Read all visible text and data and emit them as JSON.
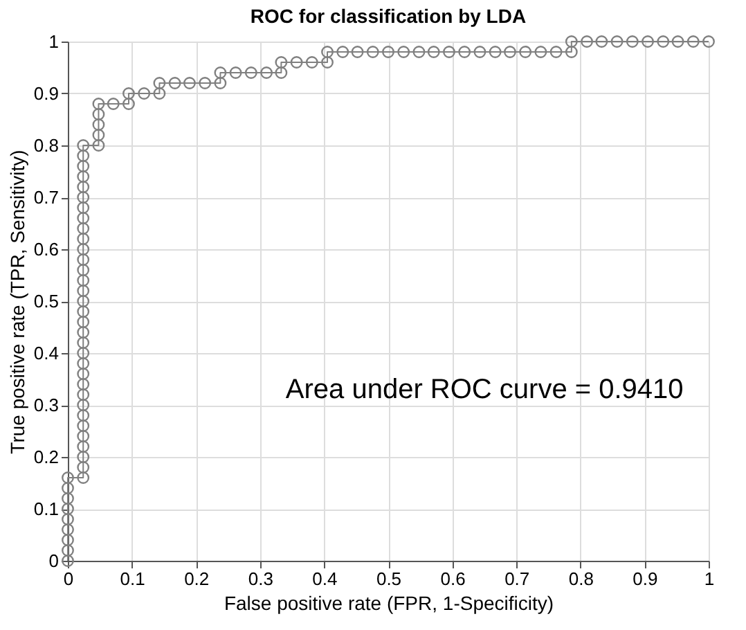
{
  "chart_data": {
    "type": "line",
    "title": "ROC for classification by LDA",
    "xlabel": "False positive rate (FPR, 1-Specificity)",
    "ylabel": "True positive rate (TPR, Sensitivity)",
    "x": [
      0,
      0,
      0,
      0,
      0,
      0,
      0,
      0,
      0,
      0.024,
      0.024,
      0.024,
      0.024,
      0.024,
      0.024,
      0.024,
      0.024,
      0.024,
      0.024,
      0.024,
      0.024,
      0.024,
      0.024,
      0.024,
      0.024,
      0.024,
      0.024,
      0.024,
      0.024,
      0.024,
      0.024,
      0.024,
      0.024,
      0.024,
      0.024,
      0.024,
      0.024,
      0.024,
      0.024,
      0.024,
      0.024,
      0.024,
      0.048,
      0.048,
      0.048,
      0.048,
      0.048,
      0.071,
      0.095,
      0.095,
      0.119,
      0.143,
      0.143,
      0.167,
      0.19,
      0.214,
      0.238,
      0.238,
      0.262,
      0.286,
      0.31,
      0.333,
      0.333,
      0.357,
      0.381,
      0.405,
      0.405,
      0.429,
      0.452,
      0.476,
      0.5,
      0.524,
      0.548,
      0.571,
      0.595,
      0.619,
      0.643,
      0.667,
      0.69,
      0.714,
      0.738,
      0.762,
      0.786,
      0.786,
      0.81,
      0.833,
      0.857,
      0.881,
      0.905,
      0.929,
      0.952,
      0.976,
      1
    ],
    "series": [
      {
        "color": "#808080",
        "values": [
          0,
          0.02,
          0.04,
          0.06,
          0.08,
          0.1,
          0.12,
          0.14,
          0.16,
          0.16,
          0.18,
          0.2,
          0.22,
          0.24,
          0.26,
          0.28,
          0.3,
          0.32,
          0.34,
          0.36,
          0.38,
          0.4,
          0.42,
          0.44,
          0.46,
          0.48,
          0.5,
          0.52,
          0.54,
          0.56,
          0.58,
          0.6,
          0.62,
          0.64,
          0.66,
          0.68,
          0.7,
          0.72,
          0.74,
          0.76,
          0.78,
          0.8,
          0.8,
          0.82,
          0.84,
          0.86,
          0.88,
          0.88,
          0.88,
          0.9,
          0.9,
          0.9,
          0.92,
          0.92,
          0.92,
          0.92,
          0.92,
          0.94,
          0.94,
          0.94,
          0.94,
          0.94,
          0.96,
          0.96,
          0.96,
          0.96,
          0.98,
          0.98,
          0.98,
          0.98,
          0.98,
          0.98,
          0.98,
          0.98,
          0.98,
          0.98,
          0.98,
          0.98,
          0.98,
          0.98,
          0.98,
          0.98,
          0.98,
          1,
          1,
          1,
          1,
          1,
          1,
          1,
          1,
          1,
          1
        ]
      }
    ],
    "xlim": [
      0,
      1
    ],
    "ylim": [
      0,
      1
    ],
    "xticks": [
      0,
      0.1,
      0.2,
      0.3,
      0.4,
      0.5,
      0.6,
      0.7,
      0.8,
      0.9,
      1
    ],
    "yticks": [
      0,
      0.1,
      0.2,
      0.3,
      0.4,
      0.5,
      0.6,
      0.7,
      0.8,
      0.9,
      1
    ],
    "annotations": [
      "Area under ROC curve = 0.9410"
    ],
    "grid": true,
    "marker": "circle",
    "line_style": "solid"
  }
}
